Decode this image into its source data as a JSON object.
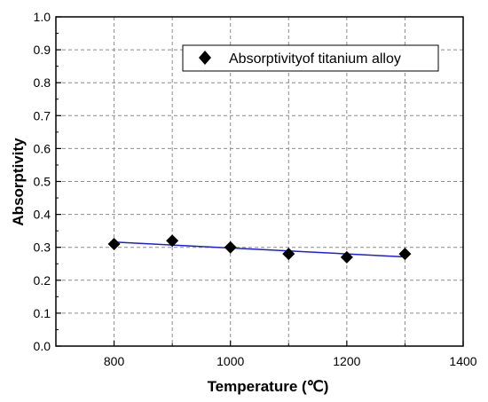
{
  "chart_data": {
    "type": "scatter",
    "title": "",
    "xlabel": "Temperature (℃)",
    "ylabel": "Absorptivity",
    "xlim": [
      700,
      1400
    ],
    "ylim": [
      0.0,
      1.0
    ],
    "xticks": [
      800,
      1000,
      1200,
      1400
    ],
    "xtick_labels": [
      "800",
      "1000",
      "1200",
      "1400"
    ],
    "yticks": [
      0.0,
      0.1,
      0.2,
      0.3,
      0.4,
      0.5,
      0.6,
      0.7,
      0.8,
      0.9,
      1.0
    ],
    "ytick_labels": [
      "0.0",
      "0.1",
      "0.2",
      "0.3",
      "0.4",
      "0.5",
      "0.6",
      "0.7",
      "0.8",
      "0.9",
      "1.0"
    ],
    "grid": true,
    "legend_position": "top-right",
    "series": [
      {
        "name": "Absorptivityof titanium alloy",
        "marker": "diamond",
        "color": "#000000",
        "x": [
          800,
          900,
          1000,
          1100,
          1200,
          1300
        ],
        "y": [
          0.31,
          0.32,
          0.3,
          0.28,
          0.27,
          0.28
        ]
      }
    ],
    "fit_line": {
      "color": "#1f1fd6",
      "x": [
        800,
        1300
      ],
      "y": [
        0.316,
        0.271
      ]
    }
  }
}
